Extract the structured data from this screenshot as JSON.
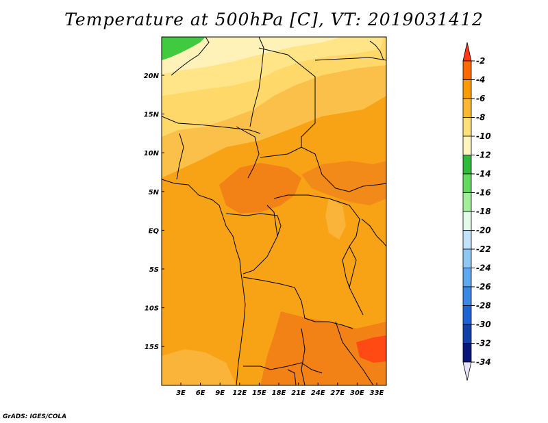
{
  "title": "Temperature at 500hPa [C], VT: 2019031412",
  "credit": "GrADS: IGES/COLA",
  "map": {
    "lat_labels": [
      "20N",
      "15N",
      "10N",
      "5N",
      "EQ",
      "5S",
      "10S",
      "15S"
    ],
    "lon_labels": [
      "3E",
      "6E",
      "9E",
      "12E",
      "15E",
      "18E",
      "21E",
      "24E",
      "27E",
      "30E",
      "33E"
    ]
  },
  "colorbar": {
    "labels": [
      "-2",
      "-4",
      "-6",
      "-8",
      "-10",
      "-12",
      "-14",
      "-16",
      "-18",
      "-20",
      "-22",
      "-24",
      "-26",
      "-28",
      "-30",
      "-32",
      "-34"
    ],
    "colors": [
      "#ff3a12",
      "#ff6a00",
      "#ff9a00",
      "#ffb732",
      "#ffe07a",
      "#fff5c0",
      "#2ebb3c",
      "#66d962",
      "#a3ee98",
      "#e4fbea",
      "#c0e3fa",
      "#8fc8f4",
      "#5fa8ef",
      "#3a87e6",
      "#1e63d4",
      "#1140a8",
      "#0a157a",
      "#e6e4f6"
    ],
    "accent_colors": {
      "orange": "#f8a216",
      "dark_orange": "#f28216",
      "light_orange": "#fbc04a",
      "pale_yellow": "#ffe07a",
      "green": "#3fca40"
    }
  }
}
